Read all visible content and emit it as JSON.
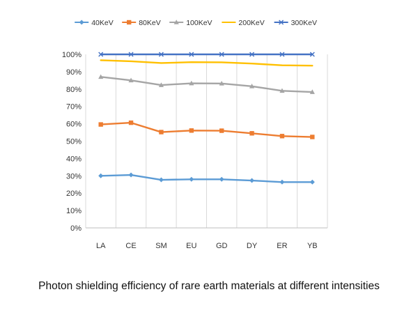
{
  "chart_data": {
    "type": "line",
    "title": "",
    "xlabel": "",
    "ylabel": "",
    "ylim": [
      0,
      100
    ],
    "y_ticks": [
      "0%",
      "10%",
      "20%",
      "30%",
      "40%",
      "50%",
      "60%",
      "70%",
      "80%",
      "90%",
      "100%"
    ],
    "categories": [
      "LA",
      "CE",
      "SM",
      "EU",
      "GD",
      "DY",
      "ER",
      "YB"
    ],
    "legend_position": "top",
    "grid": "vertical",
    "series": [
      {
        "name": "40KeV",
        "color": "#5b9bd5",
        "marker": "diamond",
        "values": [
          30,
          30.5,
          27.7,
          28,
          28,
          27.3,
          26.4,
          26.4
        ]
      },
      {
        "name": "80KeV",
        "color": "#ed7d31",
        "marker": "square",
        "values": [
          59.6,
          60.6,
          55.2,
          56.1,
          56,
          54.5,
          52.9,
          52.4
        ]
      },
      {
        "name": "100KeV",
        "color": "#a5a5a5",
        "marker": "triangle",
        "values": [
          87,
          85,
          82.3,
          83.3,
          83.2,
          81.6,
          79,
          78.3
        ]
      },
      {
        "name": "200KeV",
        "color": "#ffc000",
        "marker": "none",
        "values": [
          96.6,
          96,
          95,
          95.5,
          95.4,
          94.7,
          93.7,
          93.5
        ]
      },
      {
        "name": "300KeV",
        "color": "#4472c4",
        "marker": "x",
        "values": [
          100,
          100,
          100,
          100,
          100,
          100,
          100,
          100
        ]
      }
    ]
  },
  "caption": "Photon shielding efficiency of rare earth materials at different intensities"
}
